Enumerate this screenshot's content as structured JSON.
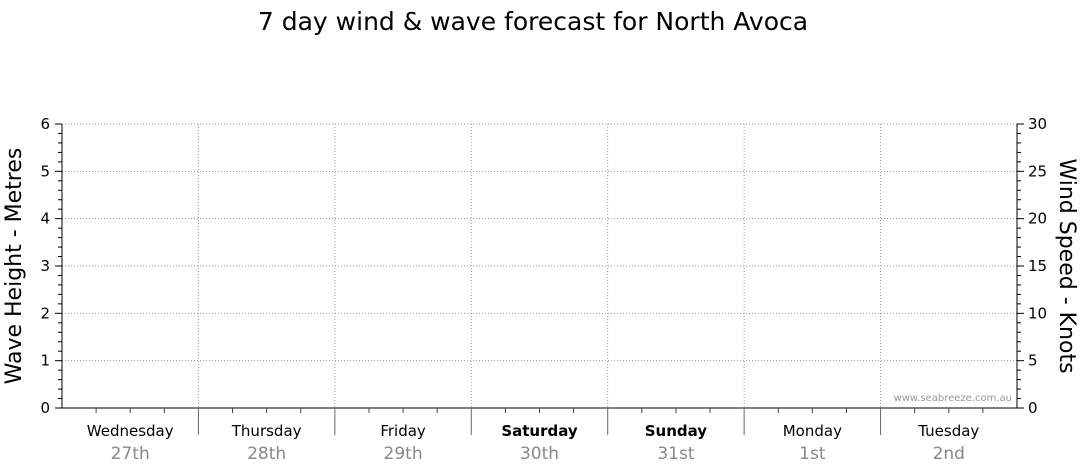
{
  "chart_data": {
    "type": "line",
    "title": "7 day wind & wave forecast for North Avoca",
    "ylabel_left": "Wave Height - Metres",
    "ylabel_right": "Wind Speed - Knots",
    "ylim_left": [
      0,
      6
    ],
    "ylim_right": [
      0,
      30
    ],
    "yticks_left": [
      "0",
      "1",
      "2",
      "3",
      "4",
      "5",
      "6"
    ],
    "yticks_right": [
      "0",
      "5",
      "10",
      "15",
      "20",
      "25",
      "30"
    ],
    "grid": true,
    "days": [
      {
        "name": "Wednesday",
        "date": "27th",
        "bold": false
      },
      {
        "name": "Thursday",
        "date": "28th",
        "bold": false
      },
      {
        "name": "Friday",
        "date": "29th",
        "bold": false
      },
      {
        "name": "Saturday",
        "date": "30th",
        "bold": true
      },
      {
        "name": "Sunday",
        "date": "31st",
        "bold": true
      },
      {
        "name": "Monday",
        "date": "1st",
        "bold": false
      },
      {
        "name": "Tuesday",
        "date": "2nd",
        "bold": false
      }
    ],
    "series": [],
    "watermark": "www.seabreeze.com.au",
    "colors": {
      "grid": "#999999",
      "axis": "#000000",
      "date_text": "#888888"
    }
  }
}
